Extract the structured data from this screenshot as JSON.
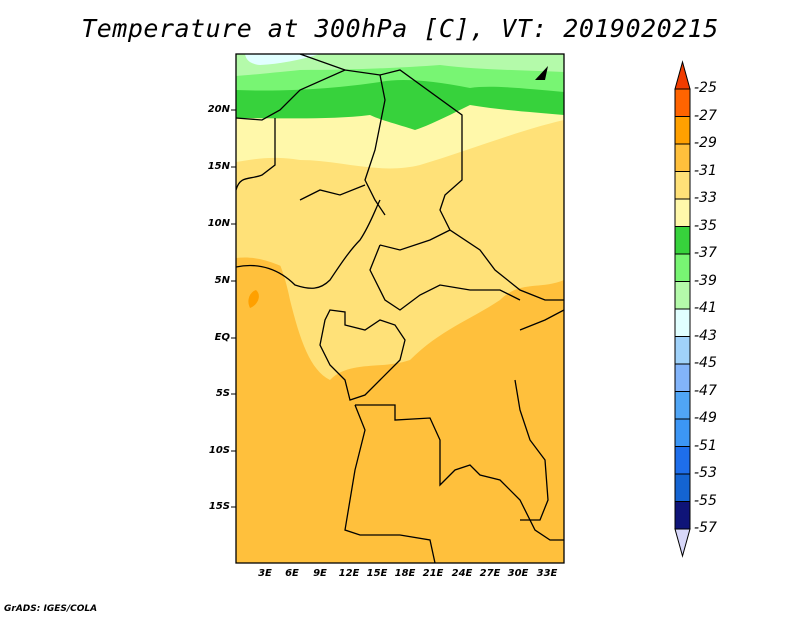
{
  "title": "Temperature at 300hPa [C], VT: 2019020215",
  "credit": "GrADS: IGES/COLA",
  "map": {
    "lat_labels": [
      "20N",
      "15N",
      "10N",
      "5N",
      "EQ",
      "5S",
      "10S",
      "15S"
    ],
    "lon_labels": [
      "3E",
      "6E",
      "9E",
      "12E",
      "15E",
      "18E",
      "21E",
      "24E",
      "27E",
      "30E",
      "33E"
    ]
  },
  "colorbar": {
    "labels": [
      "-25",
      "-27",
      "-29",
      "-31",
      "-33",
      "-35",
      "-37",
      "-39",
      "-41",
      "-43",
      "-45",
      "-47",
      "-49",
      "-51",
      "-53",
      "-55",
      "-57"
    ],
    "top_arrow_color": "#f03c00",
    "bottom_arrow_color": "#d8d8fa",
    "colors": [
      "#ff6400",
      "#ffa000",
      "#ffc03c",
      "#ffe178",
      "#fff8aa",
      "#37d23c",
      "#78f573",
      "#b4faaa",
      "#e1ffff",
      "#a0d2fa",
      "#82b4fa",
      "#50a5f5",
      "#3c96f5",
      "#1e6eeb",
      "#1464d2",
      "#0f1478"
    ]
  }
}
